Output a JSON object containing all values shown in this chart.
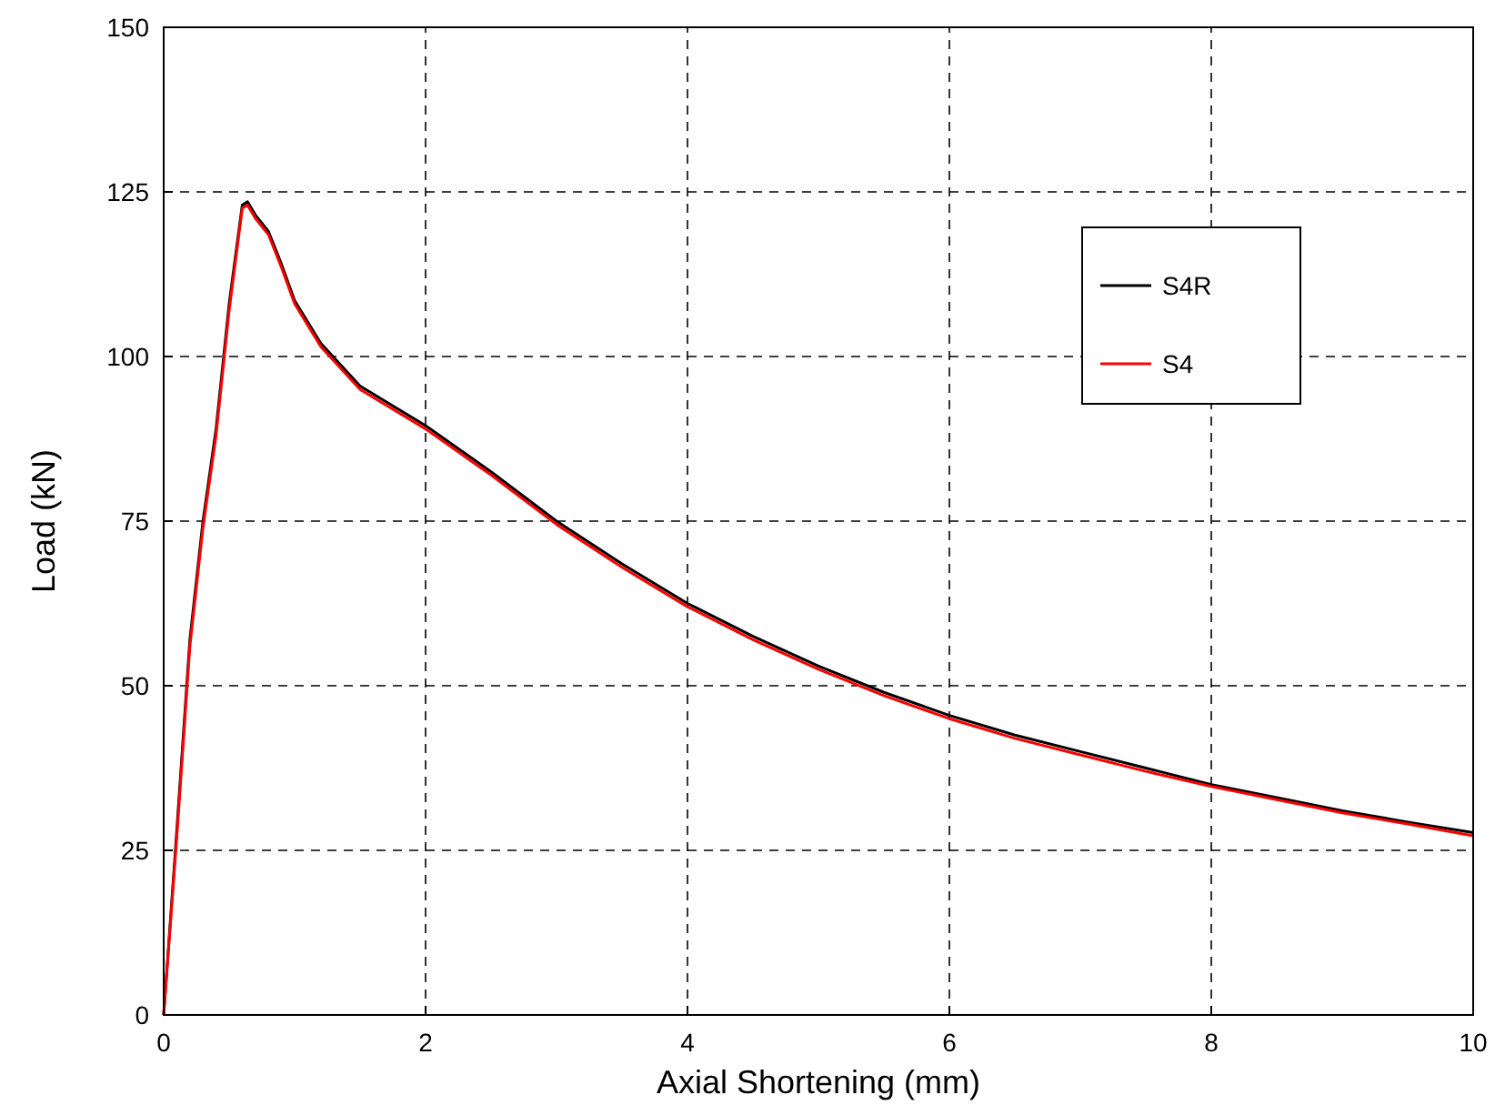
{
  "chart_data": {
    "type": "line",
    "xlabel": "Axial Shortening (mm)",
    "ylabel": "Load (kN)",
    "xlim": [
      0,
      10
    ],
    "ylim": [
      0,
      150
    ],
    "xticks": [
      0,
      2,
      4,
      6,
      8,
      10
    ],
    "yticks": [
      0,
      25,
      50,
      75,
      100,
      125,
      150
    ],
    "grid": true,
    "legend": "right",
    "line_style": "solid",
    "series": [
      {
        "name": "S4R",
        "color": "#000000",
        "x": [
          0,
          0.1,
          0.2,
          0.3,
          0.4,
          0.5,
          0.6,
          0.64,
          0.7,
          0.8,
          0.9,
          1.0,
          1.2,
          1.5,
          2.0,
          2.5,
          3.0,
          3.5,
          4.0,
          4.5,
          5.0,
          5.5,
          6.0,
          6.5,
          7.0,
          7.5,
          8.0,
          8.5,
          9.0,
          9.5,
          10.0
        ],
        "values": [
          0,
          28,
          57,
          75,
          89,
          108,
          123,
          123.5,
          121.5,
          119,
          114,
          108.5,
          102,
          95.5,
          89.5,
          82.5,
          75,
          68.5,
          62.5,
          57.5,
          53,
          49,
          45.5,
          42.5,
          40,
          37.5,
          35,
          33,
          31,
          29.3,
          27.7
        ]
      },
      {
        "name": "S4",
        "color": "#ff0000",
        "x": [
          0,
          0.1,
          0.2,
          0.3,
          0.4,
          0.5,
          0.6,
          0.64,
          0.7,
          0.8,
          0.9,
          1.0,
          1.2,
          1.5,
          2.0,
          2.5,
          3.0,
          3.5,
          4.0,
          4.5,
          5.0,
          5.5,
          6.0,
          6.5,
          7.0,
          7.5,
          8.0,
          8.5,
          9.0,
          9.5,
          10.0
        ],
        "values": [
          0,
          27,
          56,
          74,
          88,
          107,
          122.5,
          123,
          121,
          118.5,
          113.5,
          108,
          101.5,
          95,
          89,
          82,
          74.5,
          68,
          62,
          57,
          52.5,
          48.5,
          45,
          42,
          39.5,
          37,
          34.7,
          32.7,
          30.7,
          29,
          27.2
        ]
      }
    ]
  }
}
